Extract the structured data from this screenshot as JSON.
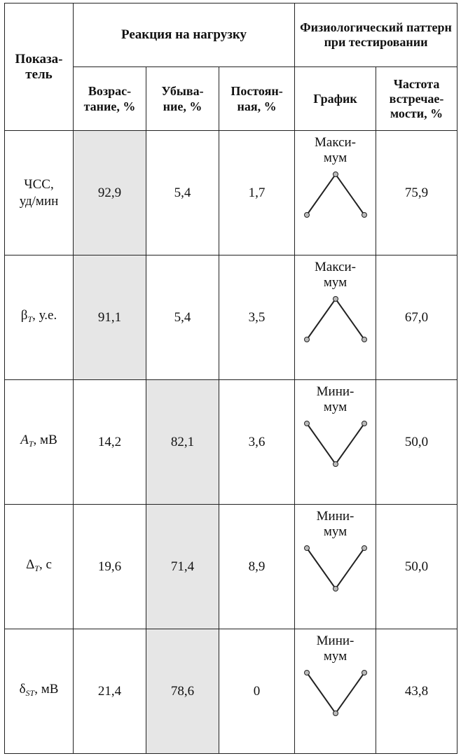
{
  "table": {
    "header": {
      "indicator": "Показа-\nтель",
      "reaction": "Реакция на нагрузку",
      "pattern": "Физиологический паттерн при тестировании",
      "increase": "Возрас-\nтание, %",
      "decrease": "Убыва-\nние, %",
      "constant": "Постоян-\nная, %",
      "graph": "График",
      "frequency": "Частота встречае-\nмости, %"
    },
    "rows": [
      {
        "indicator": "ЧСС,\nуд/мин",
        "increase": "92,9",
        "decrease": "5,4",
        "constant": "1,7",
        "pattern": "Макси-\nмум",
        "pattern_shape": "maximum",
        "frequency": "75,9",
        "highlight": "increase"
      },
      {
        "indicator_symbol": "β",
        "indicator_sub": "T",
        "indicator_unit": ", у.е.",
        "increase": "91,1",
        "decrease": "5,4",
        "constant": "3,5",
        "pattern": "Макси-\nмум",
        "pattern_shape": "maximum",
        "frequency": "67,0",
        "highlight": "increase"
      },
      {
        "indicator_symbol": "A",
        "indicator_sub": "T",
        "indicator_unit": ", мВ",
        "increase": "14,2",
        "decrease": "82,1",
        "constant": "3,6",
        "pattern": "Мини-\nмум",
        "pattern_shape": "minimum",
        "frequency": "50,0",
        "highlight": "decrease"
      },
      {
        "indicator_symbol": "Δ",
        "indicator_sub": "T",
        "indicator_unit": ", с",
        "increase": "19,6",
        "decrease": "71,4",
        "constant": "8,9",
        "pattern": "Мини-\nмум",
        "pattern_shape": "minimum",
        "frequency": "50,0",
        "highlight": "decrease"
      },
      {
        "indicator_symbol": "δ",
        "indicator_sub": "ST",
        "indicator_unit": ", мВ",
        "increase": "21,4",
        "decrease": "78,6",
        "constant": "0",
        "pattern": "Мини-\nмум",
        "pattern_shape": "minimum",
        "frequency": "43,8",
        "highlight": "decrease"
      }
    ]
  },
  "colors": {
    "highlight": "#e6e6e6",
    "line": "#222222",
    "marker_fill": "#bbbbbb"
  }
}
